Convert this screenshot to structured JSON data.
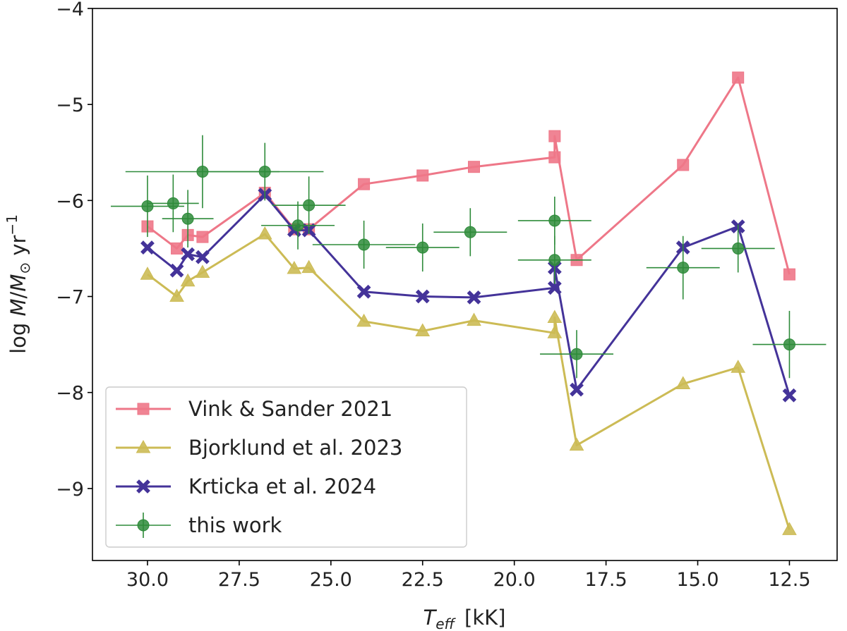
{
  "chart_data": {
    "type": "line",
    "xlabel": "T_eff [kK]",
    "ylabel": "log Ṁ/M☉ yr⁻¹",
    "xlabel_main": "T",
    "xlabel_sub": "eff",
    "xlabel_unit": "[kK]",
    "ylabel_parts": {
      "log": "log ",
      "m": "M",
      "slash": "/",
      "msun": "M",
      "sun": "⊙",
      "yr": " yr",
      "exp": "−1"
    },
    "xlim": [
      31.5,
      11.2
    ],
    "ylim": [
      -9.75,
      -4.0
    ],
    "x_ticks": [
      30.0,
      27.5,
      25.0,
      22.5,
      20.0,
      17.5,
      15.0,
      12.5
    ],
    "x_tick_labels": [
      "30.0",
      "27.5",
      "25.0",
      "22.5",
      "20.0",
      "17.5",
      "15.0",
      "12.5"
    ],
    "y_ticks": [
      -4,
      -5,
      -6,
      -7,
      -8,
      -9
    ],
    "y_tick_labels": [
      "−4",
      "−5",
      "−6",
      "−7",
      "−8",
      "−9"
    ],
    "grid": false,
    "legend_position": "lower-left",
    "series": [
      {
        "name": "Vink & Sander 2021",
        "color": "#EE7788",
        "marker": "square",
        "x": [
          30.0,
          29.2,
          28.9,
          28.5,
          26.8,
          26.0,
          25.6,
          24.1,
          22.5,
          21.1,
          18.9,
          18.9,
          18.3,
          15.4,
          13.9,
          12.5
        ],
        "y": [
          -6.27,
          -6.5,
          -6.36,
          -6.38,
          -5.92,
          -6.3,
          -6.3,
          -5.83,
          -5.74,
          -5.65,
          -5.55,
          -5.33,
          -6.62,
          -5.63,
          -4.72,
          -6.77
        ]
      },
      {
        "name": "Bjorklund et al. 2023",
        "color": "#CCBB55",
        "marker": "triangle",
        "x": [
          30.0,
          29.2,
          28.9,
          28.5,
          26.8,
          26.0,
          25.6,
          24.1,
          22.5,
          21.1,
          18.9,
          18.9,
          18.3,
          15.4,
          13.9,
          12.5
        ],
        "y": [
          -6.77,
          -7.0,
          -6.84,
          -6.75,
          -6.35,
          -6.71,
          -6.7,
          -7.26,
          -7.36,
          -7.25,
          -7.38,
          -7.22,
          -8.55,
          -7.91,
          -7.74,
          -9.43
        ]
      },
      {
        "name": "Krticka et al. 2024",
        "color": "#443399",
        "marker": "x",
        "x": [
          30.0,
          29.2,
          28.9,
          28.5,
          26.8,
          26.0,
          25.6,
          24.1,
          22.5,
          21.1,
          18.9,
          18.9,
          18.3,
          15.4,
          13.9,
          12.5
        ],
        "y": [
          -6.49,
          -6.73,
          -6.56,
          -6.59,
          -5.94,
          -6.31,
          -6.31,
          -6.95,
          -7.0,
          -7.01,
          -6.91,
          -6.7,
          -7.97,
          -6.49,
          -6.27,
          -8.03
        ]
      }
    ],
    "observed": {
      "name": "this work",
      "color": "#2E8B3A",
      "points": [
        {
          "x": 30.0,
          "y": -6.06,
          "xerr": 1.0,
          "yerr": 0.32
        },
        {
          "x": 29.3,
          "y": -6.03,
          "xerr": 0.7,
          "yerr": 0.3
        },
        {
          "x": 28.9,
          "y": -6.19,
          "xerr": 0.7,
          "yerr": 0.3
        },
        {
          "x": 28.5,
          "y": -5.7,
          "xerr": 2.1,
          "yerr": 0.38
        },
        {
          "x": 26.8,
          "y": -5.7,
          "xerr": 1.6,
          "yerr": 0.3
        },
        {
          "x": 25.9,
          "y": -6.26,
          "xerr": 1.0,
          "yerr": 0.25
        },
        {
          "x": 25.6,
          "y": -6.05,
          "xerr": 1.0,
          "yerr": 0.3
        },
        {
          "x": 24.1,
          "y": -6.46,
          "xerr": 1.4,
          "yerr": 0.25
        },
        {
          "x": 22.5,
          "y": -6.49,
          "xerr": 1.0,
          "yerr": 0.25
        },
        {
          "x": 21.2,
          "y": -6.33,
          "xerr": 1.0,
          "yerr": 0.25
        },
        {
          "x": 18.9,
          "y": -6.21,
          "xerr": 1.0,
          "yerr": 0.25
        },
        {
          "x": 18.9,
          "y": -6.62,
          "xerr": 1.0,
          "yerr": 0.25
        },
        {
          "x": 18.3,
          "y": -7.6,
          "xerr": 1.0,
          "yerr": 0.25
        },
        {
          "x": 15.4,
          "y": -6.7,
          "xerr": 1.0,
          "yerr": 0.33
        },
        {
          "x": 13.9,
          "y": -6.5,
          "xerr": 1.0,
          "yerr": 0.25
        },
        {
          "x": 12.5,
          "y": -7.5,
          "xerr": 1.0,
          "yerr": 0.35
        }
      ]
    }
  }
}
